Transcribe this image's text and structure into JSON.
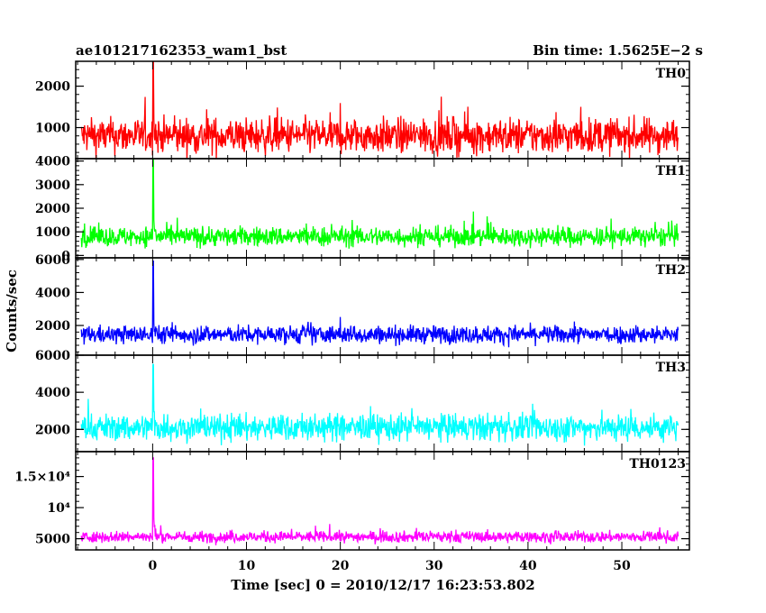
{
  "header": {
    "left": "ae101217162353_wam1_bst",
    "right": "Bin time: 1.5625E−2 s"
  },
  "chart_data": {
    "type": "line",
    "xlabel": "Time [sec] 0 = 2010/12/17 16:23:53.802",
    "ylabel": "Counts/sec",
    "xlim": [
      -8.2,
      57.2
    ],
    "x_ticks": [
      0,
      10,
      20,
      30,
      40,
      50
    ],
    "x_tick_labels": [
      "0",
      "10",
      "20",
      "30",
      "40",
      "50"
    ],
    "data_x_range": [
      -7.6,
      56.0
    ],
    "panels": [
      {
        "name": "TH0",
        "color": "#ff0000",
        "ylim": [
          250,
          2600
        ],
        "yticks": [
          1000,
          2000
        ],
        "ytick_labels": [
          "1000",
          "2000"
        ],
        "baseline": 800,
        "noise": 330,
        "peak_x": 0.05,
        "peak_value": 2600
      },
      {
        "name": "TH1",
        "color": "#00ff00",
        "ylim": [
          -100,
          4100
        ],
        "yticks": [
          0,
          1000,
          2000,
          3000,
          4000
        ],
        "ytick_labels": [
          "0",
          "1000",
          "2000",
          "3000",
          "4000"
        ],
        "baseline": 800,
        "noise": 320,
        "peak_x": 0.05,
        "peak_value": 4050
      },
      {
        "name": "TH2",
        "color": "#0000ff",
        "ylim": [
          200,
          6100
        ],
        "yticks": [
          2000,
          4000,
          6000
        ],
        "ytick_labels": [
          "2000",
          "4000",
          "6000"
        ],
        "baseline": 1450,
        "noise": 420,
        "peak_x": 0.05,
        "peak_value": 5900
      },
      {
        "name": "TH3",
        "color": "#00ffff",
        "ylim": [
          800,
          6000
        ],
        "yticks": [
          2000,
          4000,
          6000
        ],
        "ytick_labels": [
          "2000",
          "4000",
          "6000"
        ],
        "baseline": 2100,
        "noise": 560,
        "peak_x": 0.05,
        "peak_value": 5500
      },
      {
        "name": "TH0123",
        "color": "#ff00ff",
        "ylim": [
          3200,
          19000
        ],
        "yticks": [
          5000,
          10000,
          15000
        ],
        "ytick_labels": [
          "5000",
          "10⁴",
          "1.5×10⁴"
        ],
        "baseline": 5300,
        "noise": 700,
        "peak_x": 0.05,
        "peak_value": 18000
      }
    ]
  }
}
